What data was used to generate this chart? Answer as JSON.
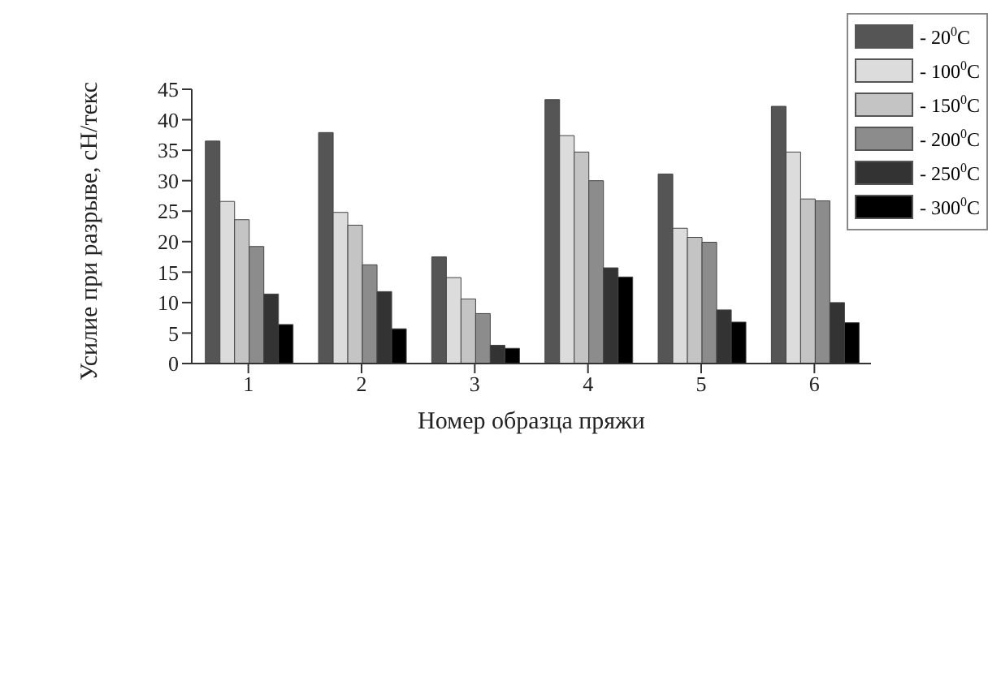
{
  "chart_data": {
    "type": "bar",
    "xlabel": "Номер образца пряжи",
    "ylabel": "Усилие при разрыве, сН/текс",
    "categories": [
      "1",
      "2",
      "3",
      "4",
      "5",
      "6"
    ],
    "series": [
      {
        "name": "- 20$^{0}$C",
        "color": "#555555",
        "values": [
          36.5,
          37.9,
          17.5,
          43.3,
          31.1,
          42.2
        ]
      },
      {
        "name": "- 100$^{0}$C",
        "color": "#dcdcdc",
        "values": [
          26.6,
          24.8,
          14.1,
          37.4,
          22.2,
          34.7
        ]
      },
      {
        "name": "- 150$^{0}$C",
        "color": "#c4c4c4",
        "values": [
          23.6,
          22.7,
          10.6,
          34.7,
          20.7,
          27.0
        ]
      },
      {
        "name": "- 200$^{0}$C",
        "color": "#8c8c8c",
        "values": [
          19.2,
          16.2,
          8.2,
          30.0,
          19.9,
          26.7
        ]
      },
      {
        "name": "- 250$^{0}$C",
        "color": "#333333",
        "values": [
          11.4,
          11.8,
          3.0,
          15.7,
          8.8,
          10.0
        ]
      },
      {
        "name": "- 300$^{0}$C",
        "color": "#000000",
        "values": [
          6.4,
          5.7,
          2.5,
          14.2,
          6.8,
          6.7
        ]
      }
    ],
    "ylim": [
      0,
      45
    ],
    "yticks": [
      0,
      5,
      10,
      15,
      20,
      25,
      30,
      35,
      40,
      45
    ],
    "grid": false,
    "legend": "top right"
  }
}
